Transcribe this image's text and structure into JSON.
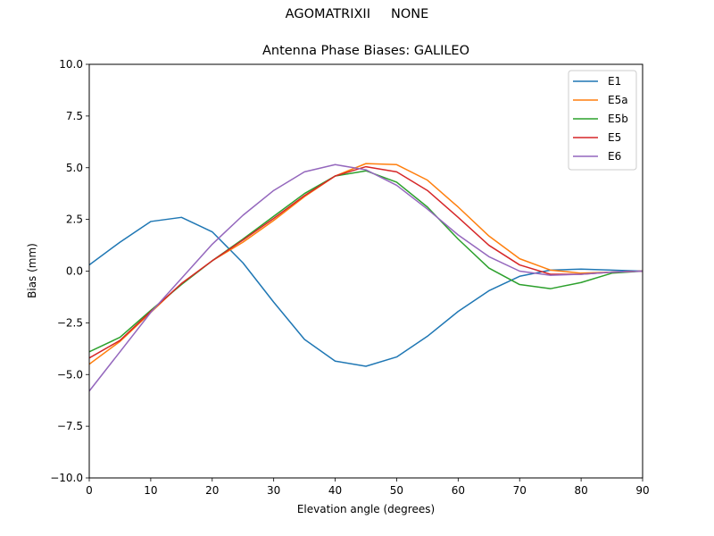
{
  "header": {
    "suptitle_left": "AGOMATRIXII",
    "suptitle_right": "NONE"
  },
  "chart_data": {
    "type": "line",
    "title": "Antenna Phase Biases: GALILEO",
    "xlabel": "Elevation angle (degrees)",
    "ylabel": "Bias (mm)",
    "xlim": [
      0,
      90
    ],
    "ylim": [
      -10,
      10
    ],
    "xticks": [
      0,
      10,
      20,
      30,
      40,
      50,
      60,
      70,
      80,
      90
    ],
    "xtick_labels": [
      "0",
      "10",
      "20",
      "30",
      "40",
      "50",
      "60",
      "70",
      "80",
      "90"
    ],
    "yticks": [
      -10,
      -7.5,
      -5,
      -2.5,
      0,
      2.5,
      5,
      7.5,
      10
    ],
    "ytick_labels": [
      "−10.0",
      "−7.5",
      "−5.0",
      "−2.5",
      "0.0",
      "2.5",
      "5.0",
      "7.5",
      "10.0"
    ],
    "legend_position": "top-right",
    "x": [
      0,
      5,
      10,
      15,
      20,
      25,
      30,
      35,
      40,
      45,
      50,
      55,
      60,
      65,
      70,
      75,
      80,
      85,
      90
    ],
    "series": [
      {
        "name": "E1",
        "color": "#1f77b4",
        "values": [
          0.3,
          1.4,
          2.4,
          2.6,
          1.9,
          0.4,
          -1.5,
          -3.3,
          -4.35,
          -4.6,
          -4.15,
          -3.15,
          -1.95,
          -0.95,
          -0.25,
          0.05,
          0.1,
          0.05,
          0.0
        ]
      },
      {
        "name": "E5a",
        "color": "#ff7f0e",
        "values": [
          -4.5,
          -3.4,
          -2.0,
          -0.6,
          0.5,
          1.4,
          2.45,
          3.6,
          4.6,
          5.2,
          5.15,
          4.4,
          3.1,
          1.7,
          0.6,
          0.05,
          -0.1,
          -0.05,
          0.0
        ]
      },
      {
        "name": "E5b",
        "color": "#2ca02c",
        "values": [
          -3.9,
          -3.2,
          -1.9,
          -0.65,
          0.5,
          1.55,
          2.65,
          3.75,
          4.6,
          4.85,
          4.3,
          3.1,
          1.55,
          0.15,
          -0.65,
          -0.85,
          -0.55,
          -0.1,
          0.0
        ]
      },
      {
        "name": "E5",
        "color": "#d62728",
        "values": [
          -4.2,
          -3.35,
          -1.95,
          -0.6,
          0.5,
          1.5,
          2.55,
          3.65,
          4.6,
          5.05,
          4.8,
          3.9,
          2.6,
          1.25,
          0.3,
          -0.15,
          -0.15,
          -0.05,
          0.0
        ]
      },
      {
        "name": "E6",
        "color": "#9467bd",
        "values": [
          -5.8,
          -3.9,
          -2.0,
          -0.35,
          1.3,
          2.7,
          3.9,
          4.8,
          5.15,
          4.9,
          4.15,
          3.0,
          1.75,
          0.7,
          0.0,
          -0.2,
          -0.15,
          -0.05,
          0.0
        ]
      }
    ]
  }
}
